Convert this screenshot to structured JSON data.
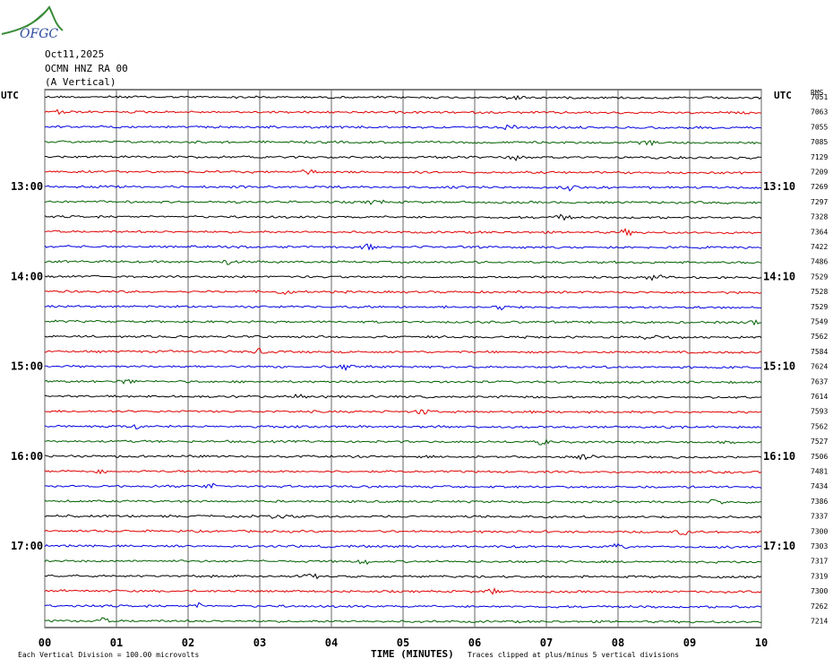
{
  "logo": {
    "text": "OFGC",
    "colors": {
      "swoosh": "#3a8c3a",
      "text": "#2a4a9c"
    }
  },
  "header": {
    "date": "Oct11,2025",
    "station": "OCMN HNZ RA 00",
    "component": "(A Vertical)"
  },
  "chart_data": {
    "type": "line",
    "title": "",
    "left_axis_label": "UTC",
    "right_axis_label": "UTC",
    "right_col_header": "RMS",
    "xlabel": "TIME (MINUTES)",
    "xlim": [
      0,
      10
    ],
    "x_ticks": [
      "00",
      "01",
      "02",
      "03",
      "04",
      "05",
      "06",
      "07",
      "08",
      "09",
      "10"
    ],
    "left_time_ticks": [
      "13:00",
      "14:00",
      "15:00",
      "16:00",
      "17:00"
    ],
    "right_time_ticks": [
      "13:10",
      "14:10",
      "15:10",
      "16:10",
      "17:10"
    ],
    "trace_colors": [
      "#000000",
      "#e00000",
      "#0000e0",
      "#006000"
    ],
    "num_traces": 36,
    "rms_values": [
      "7051",
      "7063",
      "7055",
      "7085",
      "7129",
      "7209",
      "7269",
      "7297",
      "7328",
      "7364",
      "7422",
      "7486",
      "7529",
      "7528",
      "7529",
      "7549",
      "7562",
      "7584",
      "7624",
      "7637",
      "7614",
      "7593",
      "7562",
      "7527",
      "7506",
      "7481",
      "7434",
      "7386",
      "7337",
      "7300",
      "7303",
      "7317",
      "7319",
      "7300",
      "7262",
      "7214"
    ],
    "footer_left": "Each Vertical Division =  100.00 microvolts",
    "footer_right": "Traces clipped at plus/minus 5 vertical divisions",
    "grid": true
  }
}
